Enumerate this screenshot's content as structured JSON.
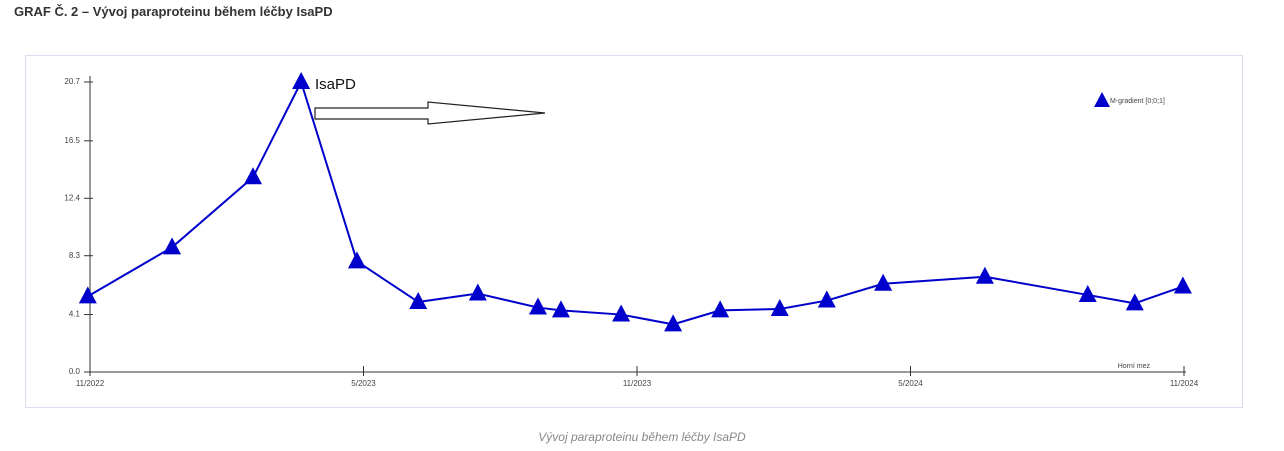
{
  "title": "GRAF Č. 2 – Vývoj paraproteinu během léčby IsaPD",
  "caption": "Vývoj paraproteinu během léčby IsaPD",
  "chart_data": {
    "type": "line",
    "annotations": [
      "IsaPD",
      "Horní mez"
    ],
    "series": [
      {
        "name": "M-gradient [0;0;1]",
        "color": "#0000cc",
        "x": [
          2022.829,
          2022.983,
          2023.131,
          2023.219,
          2023.321,
          2023.433,
          2023.542,
          2023.652,
          2023.694,
          2023.804,
          2023.899,
          2023.985,
          2024.094,
          2024.18,
          2024.283,
          2024.469,
          2024.657,
          2024.743,
          2024.831
        ],
        "values": [
          5.4,
          8.9,
          13.9,
          20.7,
          7.9,
          5.0,
          5.6,
          4.6,
          4.4,
          4.1,
          3.4,
          4.4,
          4.5,
          5.1,
          6.3,
          6.8,
          5.5,
          4.9,
          6.1
        ]
      }
    ],
    "xlim": [
      2022.833,
      2024.833
    ],
    "xticks": [
      {
        "value": 2022.833,
        "label": "11/2022"
      },
      {
        "value": 2023.333,
        "label": "5/2023"
      },
      {
        "value": 2023.833,
        "label": "11/2023"
      },
      {
        "value": 2024.333,
        "label": "5/2024"
      },
      {
        "value": 2024.833,
        "label": "11/2024"
      }
    ],
    "ylim": [
      0,
      20.7
    ],
    "yticks": [
      {
        "value": 0,
        "label": "0.0"
      },
      4.1,
      8.3,
      12.4,
      16.5,
      20.7
    ],
    "grid": false,
    "legend": "top-right"
  }
}
